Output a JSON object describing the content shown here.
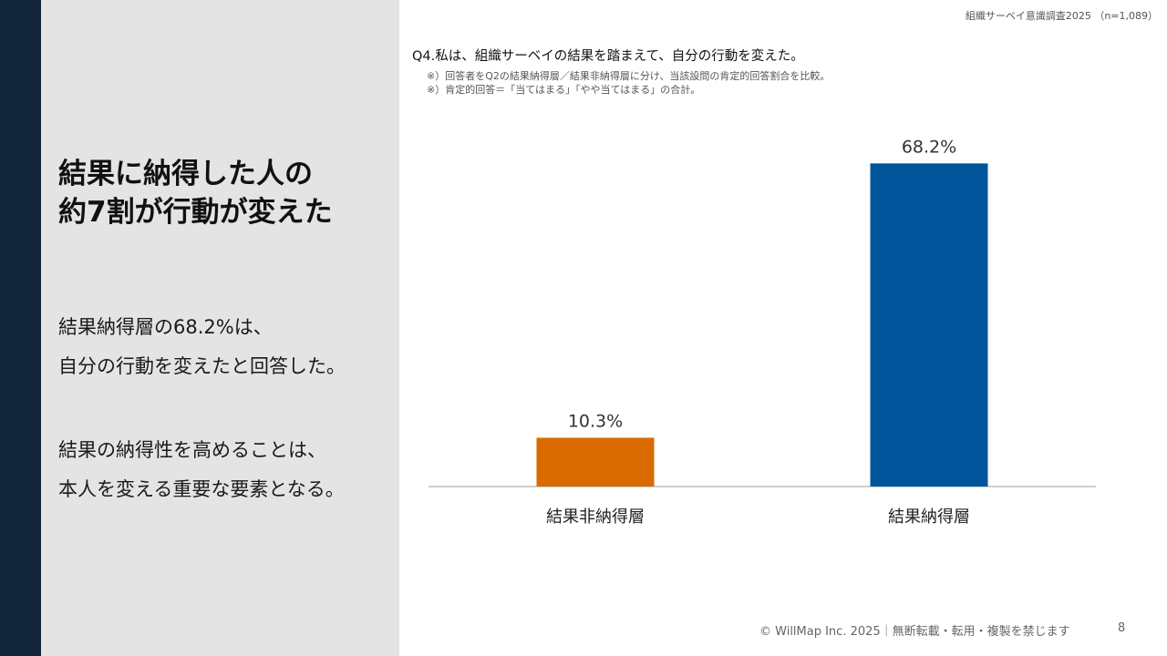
{
  "header": {
    "survey_tag": "組織サーベイ意識調査2025 （n=1,089）"
  },
  "left_panel": {
    "headline_line1": "結果に納得した人の",
    "headline_line2": "約7割が行動が変えた",
    "body1_line1": "結果納得層の68.2%は、",
    "body1_line2": "自分の行動を変えたと回答した。",
    "body2_line1": "結果の納得性を高めることは、",
    "body2_line2": "本人を変える重要な要素となる。"
  },
  "question": {
    "title": "Q4.私は、組織サーベイの結果を踏まえて、自分の行動を変えた。",
    "note1": "※）回答者をQ2の結果納得層／結果非納得層に分け、当該設問の肯定的回答割合を比較。",
    "note2": "※）肯定的回答＝「当てはまる」「やや当てはまる」の合計。"
  },
  "chart_data": {
    "type": "bar",
    "categories": [
      "結果非納得層",
      "結果納得層"
    ],
    "values": [
      10.3,
      68.2
    ],
    "value_labels": [
      "10.3%",
      "68.2%"
    ],
    "colors": [
      "#d96b00",
      "#00559b"
    ],
    "title": "",
    "xlabel": "",
    "ylabel": "",
    "ylim": [
      0,
      70
    ]
  },
  "footer": {
    "copyright": "© WillMap Inc. 2025｜無断転載・転用・複製を禁じます",
    "page_number": "8"
  }
}
